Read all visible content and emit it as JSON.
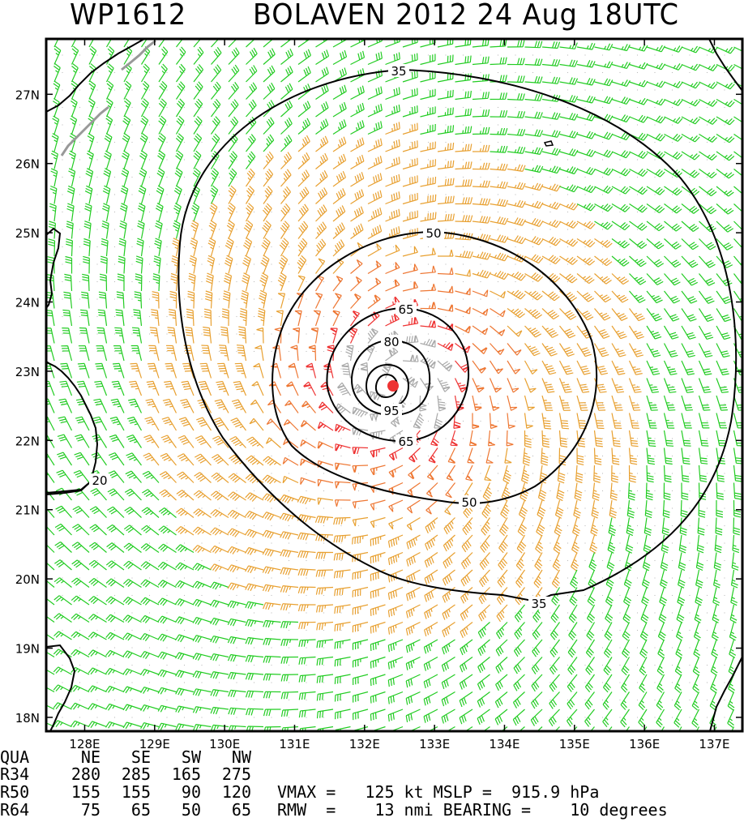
{
  "title": {
    "storm_id": "WP1612",
    "storm_name_date": "BOLAVEN 2012 24 Aug 18UTC"
  },
  "map": {
    "lat_labels": [
      "27N",
      "26N",
      "25N",
      "24N",
      "23N",
      "22N",
      "21N",
      "20N",
      "19N",
      "18N"
    ],
    "lon_labels": [
      "128E",
      "129E",
      "130E",
      "131E",
      "132E",
      "133E",
      "134E",
      "135E",
      "136E",
      "137E"
    ],
    "lat_range": [
      17.8,
      27.8
    ],
    "lon_range": [
      127.45,
      137.4
    ],
    "center": {
      "lat": 22.8,
      "lon": 132.4
    },
    "contour_labels": [
      "35",
      "50",
      "65",
      "80",
      "95",
      "35",
      "50",
      "65",
      "20"
    ],
    "colors": {
      "lt34": "#22cc22",
      "r34": "#e8a030",
      "r50": "#ee7733",
      "r64": "#ee3333",
      "r80": "#aaaaaa",
      "land": "#000000",
      "coast": "#999999",
      "center": "#ee3333"
    }
  },
  "table": {
    "header": [
      "QUA",
      "NE",
      "SE",
      "SW",
      "NW"
    ],
    "rows": [
      [
        "R34",
        "280",
        "285",
        "165",
        "275"
      ],
      [
        "R50",
        "155",
        "155",
        "90",
        "120"
      ],
      [
        "R64",
        "75",
        "65",
        "50",
        "65"
      ]
    ],
    "stats_line1": "VMAX =   125 kt MSLP =  915.9 hPa",
    "stats_line2": "RMW  =    13 nmi BEARING =    10 degrees"
  }
}
